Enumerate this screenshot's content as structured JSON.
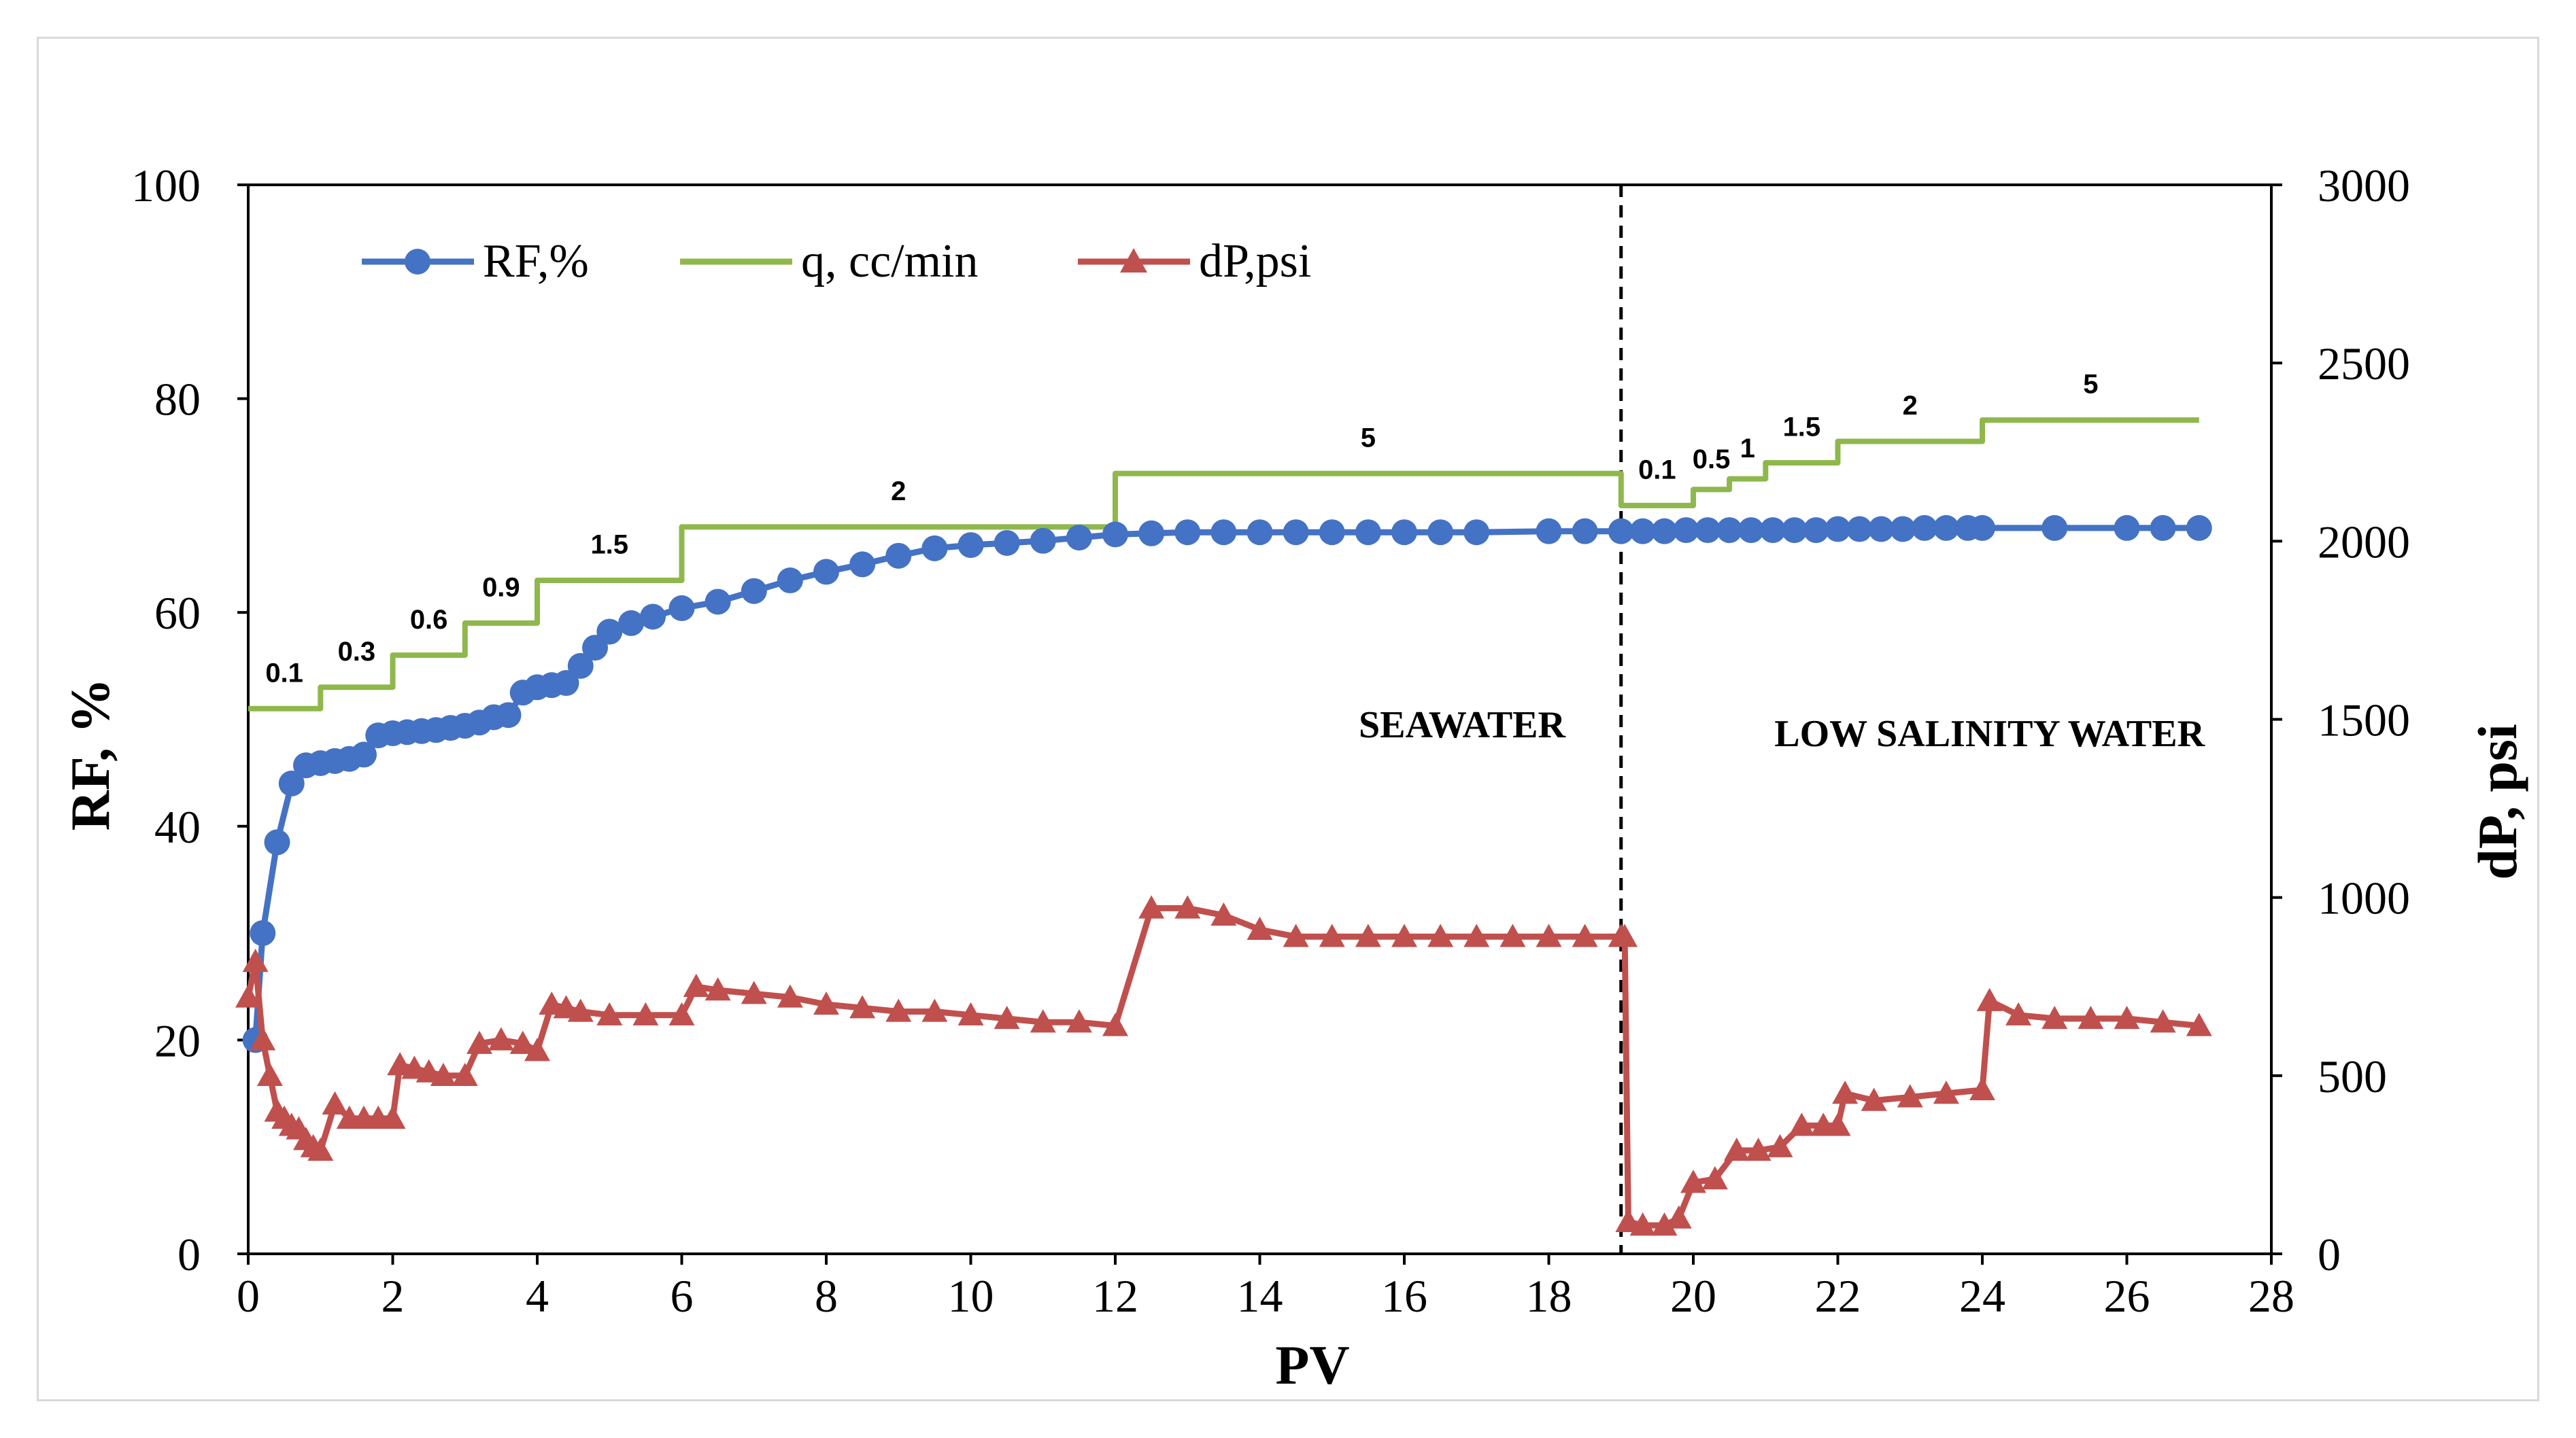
{
  "chart_data": {
    "type": "line",
    "xlabel": "PV",
    "ylabel": "RF, %",
    "y2label": "dP, psi",
    "xlim": [
      0,
      28
    ],
    "ylim": [
      0,
      100
    ],
    "y2lim": [
      0,
      3000
    ],
    "x_ticks": [
      "0",
      "2",
      "4",
      "6",
      "8",
      "10",
      "12",
      "14",
      "16",
      "18",
      "20",
      "22",
      "24",
      "26",
      "28"
    ],
    "y_ticks": [
      "0",
      "20",
      "40",
      "60",
      "80",
      "100"
    ],
    "y2_ticks": [
      "0",
      "500",
      "1000",
      "1500",
      "2000",
      "2500",
      "3000"
    ],
    "grid": false,
    "legend_position": "top-left",
    "colors": {
      "rf": "#4472c4",
      "q": "#8fb84c",
      "dp": "#c0504d",
      "divider": "#000000"
    },
    "series": [
      {
        "name": "RF,%",
        "axis": "left",
        "marker": "circle",
        "x": [
          0.1,
          0.2,
          0.4,
          0.6,
          0.8,
          1.0,
          1.2,
          1.4,
          1.6,
          1.8,
          2.0,
          2.2,
          2.4,
          2.6,
          2.8,
          3.0,
          3.2,
          3.4,
          3.6,
          3.8,
          4.0,
          4.2,
          4.4,
          4.6,
          4.8,
          5.0,
          5.3,
          5.6,
          6.0,
          6.5,
          7.0,
          7.5,
          8.0,
          8.5,
          9.0,
          9.5,
          10.0,
          10.5,
          11.0,
          11.5,
          12.0,
          12.5,
          13.0,
          13.5,
          14.0,
          14.5,
          15.0,
          15.5,
          16.0,
          16.5,
          17.0,
          18.0,
          18.5,
          19.0,
          19.3,
          19.6,
          19.9,
          20.2,
          20.5,
          20.8,
          21.1,
          21.4,
          21.7,
          22.0,
          22.3,
          22.6,
          22.9,
          23.2,
          23.5,
          23.8,
          24.0,
          25.0,
          26.0,
          26.5,
          27.0
        ],
        "y": [
          20,
          30,
          38.5,
          44,
          45.7,
          45.9,
          46.1,
          46.3,
          46.7,
          48.5,
          48.7,
          48.8,
          48.9,
          49.0,
          49.2,
          49.4,
          49.7,
          50.2,
          50.4,
          52.5,
          53.0,
          53.2,
          53.4,
          55.0,
          56.7,
          58.2,
          59.0,
          59.6,
          60.4,
          61.0,
          62.0,
          63.0,
          63.8,
          64.5,
          65.3,
          66.0,
          66.3,
          66.5,
          66.7,
          67.0,
          67.3,
          67.4,
          67.5,
          67.5,
          67.5,
          67.5,
          67.5,
          67.5,
          67.5,
          67.5,
          67.5,
          67.6,
          67.6,
          67.6,
          67.6,
          67.6,
          67.7,
          67.7,
          67.7,
          67.7,
          67.7,
          67.7,
          67.7,
          67.8,
          67.8,
          67.8,
          67.8,
          67.9,
          67.9,
          67.9,
          67.9,
          67.9,
          67.9,
          67.9,
          67.9
        ]
      },
      {
        "name": "q, cc/min",
        "axis": "left",
        "marker": "none",
        "step": true,
        "x": [
          0,
          1,
          1,
          2,
          2,
          3,
          3,
          4,
          4,
          6,
          6,
          12,
          12,
          19,
          19,
          20,
          20,
          20.5,
          20.5,
          21,
          21,
          22,
          22,
          24,
          24,
          27
        ],
        "y": [
          51,
          51,
          53,
          53,
          56,
          56,
          59,
          59,
          63,
          63,
          68,
          68,
          73,
          73,
          70,
          70,
          71.5,
          71.5,
          72.5,
          72.5,
          74,
          74,
          76,
          76,
          78,
          78
        ]
      },
      {
        "name": "dP,psi",
        "axis": "right",
        "marker": "triangle",
        "x": [
          0,
          0.1,
          0.2,
          0.3,
          0.4,
          0.5,
          0.6,
          0.7,
          0.8,
          0.9,
          1.0,
          1.2,
          1.4,
          1.6,
          1.8,
          2.0,
          2.1,
          2.3,
          2.5,
          2.7,
          3.0,
          3.2,
          3.5,
          3.8,
          4.0,
          4.2,
          4.4,
          4.6,
          5.0,
          5.5,
          6.0,
          6.2,
          6.5,
          7.0,
          7.5,
          8.0,
          8.5,
          9.0,
          9.5,
          10.0,
          10.5,
          11.0,
          11.5,
          12.0,
          12.5,
          13.0,
          13.5,
          14.0,
          14.5,
          15.0,
          15.5,
          16.0,
          16.5,
          17.0,
          17.5,
          18.0,
          18.5,
          19.0,
          19.05,
          19.1,
          19.3,
          19.6,
          19.8,
          20.0,
          20.3,
          20.6,
          20.9,
          21.2,
          21.5,
          21.8,
          22.0,
          22.1,
          22.5,
          23.0,
          23.5,
          24.0,
          24.1,
          24.5,
          25.0,
          25.5,
          26.0,
          26.5,
          27.0
        ],
        "y": [
          720,
          820,
          600,
          500,
          400,
          380,
          360,
          350,
          320,
          300,
          290,
          420,
          380,
          380,
          380,
          380,
          530,
          520,
          510,
          500,
          500,
          590,
          600,
          590,
          570,
          700,
          690,
          680,
          670,
          670,
          670,
          750,
          740,
          730,
          720,
          700,
          690,
          680,
          680,
          670,
          660,
          650,
          650,
          640,
          970,
          970,
          950,
          910,
          890,
          890,
          890,
          890,
          890,
          890,
          890,
          890,
          890,
          890,
          890,
          90,
          80,
          80,
          100,
          200,
          210,
          290,
          290,
          300,
          360,
          360,
          360,
          450,
          430,
          440,
          450,
          460,
          710,
          670,
          660,
          660,
          660,
          650,
          640
        ]
      }
    ],
    "q_step_labels": [
      {
        "text": "0.1",
        "x": 0.5,
        "y": 53.5
      },
      {
        "text": "0.3",
        "x": 1.5,
        "y": 55.5
      },
      {
        "text": "0.6",
        "x": 2.5,
        "y": 58.5
      },
      {
        "text": "0.9",
        "x": 3.5,
        "y": 61.5
      },
      {
        "text": "1.5",
        "x": 5.0,
        "y": 65.5
      },
      {
        "text": "2",
        "x": 9.0,
        "y": 70.5
      },
      {
        "text": "5",
        "x": 15.5,
        "y": 75.5
      },
      {
        "text": "0.1",
        "x": 19.5,
        "y": 72.5
      },
      {
        "text": "0.5",
        "x": 20.25,
        "y": 73.5
      },
      {
        "text": "1",
        "x": 20.75,
        "y": 74.5
      },
      {
        "text": "1.5",
        "x": 21.5,
        "y": 76.5
      },
      {
        "text": "2",
        "x": 23.0,
        "y": 78.5
      },
      {
        "text": "5",
        "x": 25.5,
        "y": 80.5
      }
    ],
    "divider_x": 19.0,
    "annotations": [
      {
        "text": "SEAWATER",
        "x": 16.8,
        "y": 48.3
      },
      {
        "text": "LOW SALINITY WATER",
        "x": 24.1,
        "y": 47.5
      }
    ]
  }
}
